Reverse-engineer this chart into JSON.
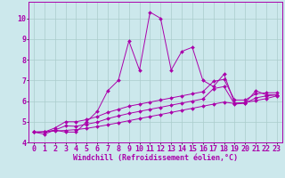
{
  "background_color": "#cce8ec",
  "grid_color": "#aacccc",
  "line_color": "#aa00aa",
  "marker_color": "#aa00aa",
  "xlabel": "Windchill (Refroidissement éolien,°C)",
  "xlabel_fontsize": 6.0,
  "tick_fontsize": 6.0,
  "xlim": [
    -0.5,
    23.5
  ],
  "ylim": [
    4.0,
    10.8
  ],
  "yticks": [
    4,
    5,
    6,
    7,
    8,
    9,
    10
  ],
  "xticks": [
    0,
    1,
    2,
    3,
    4,
    5,
    6,
    7,
    8,
    9,
    10,
    11,
    12,
    13,
    14,
    15,
    16,
    17,
    18,
    19,
    20,
    21,
    22,
    23
  ],
  "series": [
    {
      "x": [
        0,
        1,
        2,
        3,
        4,
        5,
        6,
        7,
        8,
        9,
        10,
        11,
        12,
        13,
        14,
        15,
        16,
        17,
        18,
        19,
        20,
        21,
        22,
        23
      ],
      "y": [
        4.5,
        4.4,
        4.6,
        4.5,
        4.5,
        5.0,
        5.5,
        6.5,
        7.0,
        8.9,
        7.5,
        10.3,
        10.0,
        7.5,
        8.4,
        8.6,
        7.0,
        6.7,
        7.3,
        5.9,
        5.9,
        6.5,
        6.3,
        6.3
      ]
    },
    {
      "x": [
        0,
        1,
        2,
        3,
        4,
        5,
        6,
        7,
        8,
        9,
        10,
        11,
        12,
        13,
        14,
        15,
        16,
        17,
        18,
        19,
        20,
        21,
        22,
        23
      ],
      "y": [
        4.5,
        4.5,
        4.7,
        5.0,
        5.0,
        5.1,
        5.25,
        5.45,
        5.6,
        5.75,
        5.85,
        5.95,
        6.05,
        6.15,
        6.25,
        6.35,
        6.45,
        6.95,
        7.05,
        6.05,
        6.05,
        6.35,
        6.4,
        6.4
      ]
    },
    {
      "x": [
        0,
        1,
        2,
        3,
        4,
        5,
        6,
        7,
        8,
        9,
        10,
        11,
        12,
        13,
        14,
        15,
        16,
        17,
        18,
        19,
        20,
        21,
        22,
        23
      ],
      "y": [
        4.5,
        4.5,
        4.6,
        4.8,
        4.78,
        4.88,
        4.98,
        5.15,
        5.28,
        5.4,
        5.5,
        5.6,
        5.7,
        5.8,
        5.9,
        6.0,
        6.1,
        6.6,
        6.7,
        5.85,
        5.9,
        6.15,
        6.25,
        6.3
      ]
    },
    {
      "x": [
        0,
        1,
        2,
        3,
        4,
        5,
        6,
        7,
        8,
        9,
        10,
        11,
        12,
        13,
        14,
        15,
        16,
        17,
        18,
        19,
        20,
        21,
        22,
        23
      ],
      "y": [
        4.5,
        4.52,
        4.55,
        4.58,
        4.62,
        4.68,
        4.76,
        4.85,
        4.95,
        5.05,
        5.15,
        5.25,
        5.35,
        5.45,
        5.55,
        5.65,
        5.75,
        5.85,
        5.95,
        5.88,
        5.93,
        6.02,
        6.12,
        6.25
      ]
    }
  ]
}
